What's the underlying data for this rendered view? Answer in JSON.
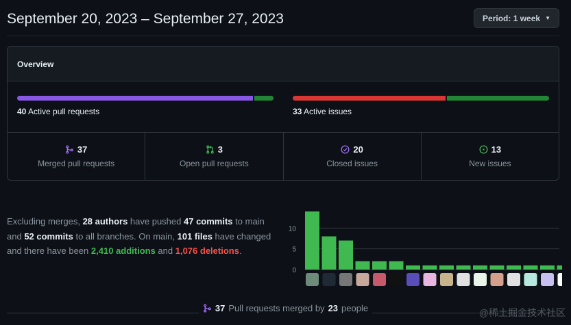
{
  "header": {
    "title": "September 20, 2023 – September 27, 2023",
    "period_label": "Period: 1 week"
  },
  "overview": {
    "title": "Overview",
    "pull_requests": {
      "count": "40",
      "label": "Active pull requests",
      "merged_fraction": 0.925,
      "color_merged": "#8957e5",
      "color_open": "#238636"
    },
    "issues": {
      "count": "33",
      "label": "Active issues",
      "closed_fraction": 0.6,
      "color_closed": "#da3633",
      "color_new": "#238636"
    },
    "stats": [
      {
        "icon": "merge-icon",
        "count": "37",
        "label": "Merged pull requests",
        "color": "#a371f7"
      },
      {
        "icon": "pull-request-icon",
        "count": "3",
        "label": "Open pull requests",
        "color": "#3fb950"
      },
      {
        "icon": "issue-closed-icon",
        "count": "20",
        "label": "Closed issues",
        "color": "#a371f7"
      },
      {
        "icon": "issue-opened-icon",
        "count": "13",
        "label": "New issues",
        "color": "#3fb950"
      }
    ]
  },
  "summary": {
    "t1": "Excluding merges, ",
    "authors": "28 authors",
    "t2": " have pushed ",
    "commits": "47 commits",
    "t3": " to main and ",
    "commits_all": "52 commits",
    "t4": " to all branches. On main, ",
    "files": "101 files",
    "t5": " have changed and there have been ",
    "additions": "2,410 additions",
    "t6": " and ",
    "deletions": "1,076 deletions",
    "t7": "."
  },
  "chart_data": {
    "type": "bar",
    "values": [
      14,
      8,
      7,
      2,
      2,
      2,
      1,
      1,
      1,
      1,
      1,
      1,
      1,
      1,
      1,
      1
    ],
    "y_ticks": [
      "0",
      "5",
      "10"
    ],
    "ylim": [
      0,
      15
    ],
    "bar_color": "#3fb950",
    "avatar_colors": [
      "#6d8a7a",
      "#1f2a36",
      "#777777",
      "#c9a89c",
      "#c65a6a",
      "#111111",
      "#5a4db8",
      "#e8b4e0",
      "#c8b48c",
      "#e0e0e0",
      "#e8f5e8",
      "#d4a08c",
      "#e0e0e0",
      "#b6e8e0",
      "#c8c0f0",
      "#ffffff"
    ]
  },
  "footer": {
    "count": "37",
    "text": "Pull requests merged by",
    "people": "23",
    "people_label": "people"
  },
  "watermark": "@稀土掘金技术社区"
}
